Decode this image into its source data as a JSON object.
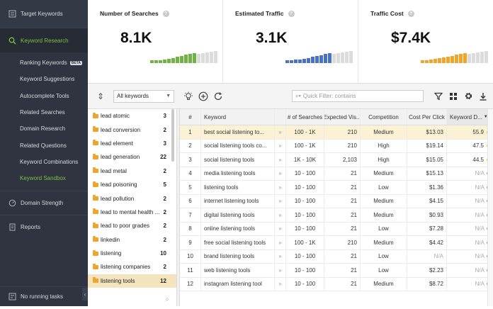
{
  "sidebar": {
    "top_item": "Target Keywords",
    "section": "Keyword Research",
    "items": [
      {
        "label": "Ranking Keywords",
        "badge": "BETA"
      },
      {
        "label": "Keyword Suggestions"
      },
      {
        "label": "Autocomplete Tools"
      },
      {
        "label": "Related Searches"
      },
      {
        "label": "Domain Research"
      },
      {
        "label": "Related Questions"
      },
      {
        "label": "Keyword Combinations"
      },
      {
        "label": "Keyword Sandbox"
      }
    ],
    "strength": "Domain Strength",
    "reports": "Reports",
    "bottom": "No running tasks",
    "accent": "#7bc144"
  },
  "stats": [
    {
      "title": "Number of Searches",
      "value": "8.1K",
      "color": "#6fb443",
      "bar_levels": [
        0.22,
        0.22,
        0.22,
        0.28,
        0.33,
        0.4,
        0.48,
        0.56,
        0.65,
        0.72,
        0.8,
        0.88,
        0.95,
        1,
        1,
        1
      ]
    },
    {
      "title": "Estimated Traffic",
      "value": "3.1K",
      "color": "#4a72c4",
      "bar_levels": [
        0.2,
        0.22,
        0.26,
        0.3,
        0.35,
        0.4,
        0.48,
        0.55,
        0.62,
        0.7,
        0.78,
        0.85,
        0.9,
        0.95,
        1,
        1
      ]
    },
    {
      "title": "Traffic Cost",
      "value": "$7.4K",
      "color": "#f0a42a",
      "bar_levels": [
        0.2,
        0.24,
        0.28,
        0.34,
        0.4,
        0.46,
        0.52,
        0.58,
        0.64,
        0.72,
        0.78,
        0.85,
        0.9,
        0.95,
        1,
        1
      ]
    }
  ],
  "toolbar": {
    "group_select": "All keywords",
    "filter_placeholder": "Quick Filter: contains"
  },
  "groups": [
    {
      "label": "lead atomic",
      "count": "3"
    },
    {
      "label": "lead conversion",
      "count": "2"
    },
    {
      "label": "lead element",
      "count": "3"
    },
    {
      "label": "lead generation",
      "count": "22"
    },
    {
      "label": "lead metal",
      "count": "2"
    },
    {
      "label": "lead poisoning",
      "count": "5"
    },
    {
      "label": "lead pollution",
      "count": "2"
    },
    {
      "label": "lead to mental health ...",
      "count": "2"
    },
    {
      "label": "lead to poor grades",
      "count": "2"
    },
    {
      "label": "linkedin",
      "count": "2"
    },
    {
      "label": "listening",
      "count": "10"
    },
    {
      "label": "listening companies",
      "count": "2"
    },
    {
      "label": "listening tools",
      "count": "12",
      "selected": true
    }
  ],
  "table": {
    "headers": {
      "num": "#",
      "keyword": "Keyword",
      "searches": "# of Searches",
      "expected": "Expected Vis...",
      "competition": "Competition",
      "cpc": "Cost Per Click",
      "kd": "Keyword D..."
    },
    "rows": [
      {
        "num": "1",
        "keyword": "best social listening to...",
        "searches": "100 - 1K",
        "expected": "210",
        "competition": "Medium",
        "cpc": "$13.03",
        "kd": "55.9",
        "dot": "#f5c518",
        "selected": true
      },
      {
        "num": "2",
        "keyword": "social listening tools co...",
        "searches": "100 - 1K",
        "expected": "210",
        "competition": "High",
        "cpc": "$19.14",
        "kd": "47.5",
        "dot": "#f5c518"
      },
      {
        "num": "3",
        "keyword": "social listening tools",
        "searches": "1K - 10K",
        "expected": "2,103",
        "competition": "High",
        "cpc": "$15.05",
        "kd": "44.5",
        "dot": "#f5c518"
      },
      {
        "num": "4",
        "keyword": "media listening tools",
        "searches": "10 - 100",
        "expected": "21",
        "competition": "Medium",
        "cpc": "$15.13",
        "kd": "N/A",
        "dot": "#999999"
      },
      {
        "num": "5",
        "keyword": "listening tools",
        "searches": "10 - 100",
        "expected": "21",
        "competition": "Low",
        "cpc": "$1.36",
        "kd": "N/A",
        "dot": "#999999"
      },
      {
        "num": "6",
        "keyword": "internet listening tools",
        "searches": "10 - 100",
        "expected": "21",
        "competition": "Medium",
        "cpc": "$4.15",
        "kd": "N/A",
        "dot": "#999999"
      },
      {
        "num": "7",
        "keyword": "digital listening tools",
        "searches": "10 - 100",
        "expected": "21",
        "competition": "Medium",
        "cpc": "$0.93",
        "kd": "N/A",
        "dot": "#999999"
      },
      {
        "num": "8",
        "keyword": "online listening tools",
        "searches": "10 - 100",
        "expected": "21",
        "competition": "Low",
        "cpc": "$7.28",
        "kd": "N/A",
        "dot": "#999999"
      },
      {
        "num": "9",
        "keyword": "free social listening tools",
        "searches": "100 - 1K",
        "expected": "210",
        "competition": "Medium",
        "cpc": "$4.42",
        "kd": "N/A",
        "dot": "#999999"
      },
      {
        "num": "10",
        "keyword": "brand listening tools",
        "searches": "10 - 100",
        "expected": "21",
        "competition": "Low",
        "cpc": "N/A",
        "kd": "N/A",
        "dot": "#999999"
      },
      {
        "num": "11",
        "keyword": "web listening tools",
        "searches": "10 - 100",
        "expected": "21",
        "competition": "Low",
        "cpc": "$2.23",
        "kd": "N/A",
        "dot": "#999999"
      },
      {
        "num": "12",
        "keyword": "instagram listening tool",
        "searches": "10 - 100",
        "expected": "21",
        "competition": "Medium",
        "cpc": "$8.72",
        "kd": "N/A",
        "dot": "#999999"
      }
    ]
  }
}
